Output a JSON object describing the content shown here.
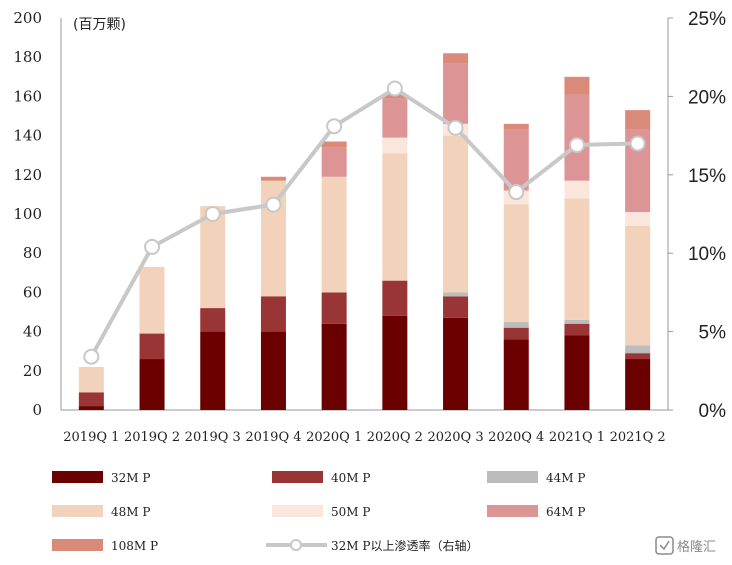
{
  "chart_data": {
    "type": "bar",
    "stacked": true,
    "unit_label": "(百万颗)",
    "categories": [
      "2019Q 1",
      "2019Q 2",
      "2019Q 3",
      "2019Q 4",
      "2020Q 1",
      "2020Q 2",
      "2020Q 3",
      "2020Q 4",
      "2021Q 1",
      "2021Q 2"
    ],
    "ylim": [
      0,
      200
    ],
    "yticks": [
      0,
      20,
      40,
      60,
      80,
      100,
      120,
      140,
      160,
      180,
      200
    ],
    "y2lim": [
      0,
      25
    ],
    "y2ticks": [
      "0%",
      "5%",
      "10%",
      "15%",
      "20%",
      "25%"
    ],
    "series": [
      {
        "name": "32M P",
        "color": "#6b0000",
        "values": [
          2,
          26,
          40,
          40,
          44,
          48,
          47,
          36,
          38,
          26
        ]
      },
      {
        "name": "40M P",
        "color": "#9a3535",
        "values": [
          7,
          13,
          12,
          18,
          16,
          18,
          11,
          6,
          6,
          3
        ]
      },
      {
        "name": "44M P",
        "color": "#bcbcbc",
        "values": [
          0,
          0,
          0,
          0,
          0,
          0,
          2,
          3,
          2,
          4
        ]
      },
      {
        "name": "48M P",
        "color": "#f2d2ba",
        "values": [
          13,
          34,
          52,
          59,
          59,
          65,
          80,
          60,
          62,
          61
        ]
      },
      {
        "name": "50M P",
        "color": "#fbe6dc",
        "values": [
          0,
          0,
          0,
          0,
          0,
          8,
          6,
          7,
          9,
          7
        ]
      },
      {
        "name": "64M P",
        "color": "#dc9494",
        "values": [
          0,
          0,
          0,
          0,
          15,
          20,
          31,
          31,
          44,
          42
        ]
      },
      {
        "name": "108M P",
        "color": "#d98a78",
        "values": [
          0,
          0,
          0,
          2,
          3,
          2,
          5,
          3,
          9,
          10
        ]
      }
    ],
    "line": {
      "name": "32M P以上渗透率（右轴）",
      "color": "#c8c8c8",
      "axis": "right",
      "values": [
        3.4,
        10.4,
        12.5,
        13.1,
        18.1,
        20.5,
        18.0,
        13.9,
        16.9,
        17.0
      ]
    }
  },
  "watermark": "格隆汇"
}
